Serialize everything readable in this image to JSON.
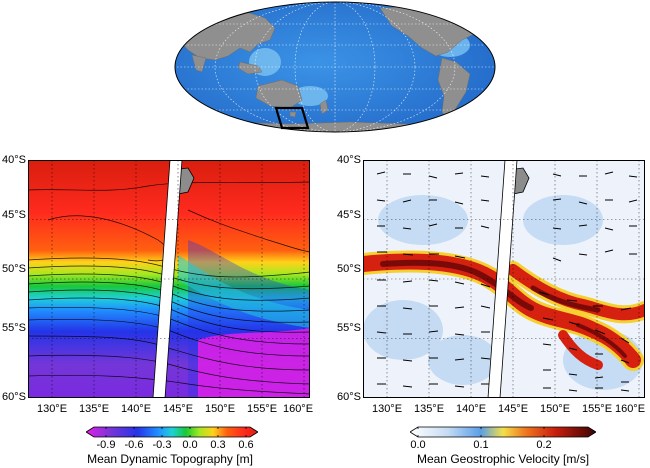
{
  "globe": {
    "ocean_color": "#2f83d8",
    "land_color": "#8c8c8c",
    "study_box": {
      "lon": [
        130,
        162
      ],
      "lat": [
        -60,
        -40
      ]
    }
  },
  "panel_left": {
    "y_ticks": [
      "40°S",
      "45°S",
      "50°S",
      "55°S",
      "60°S"
    ],
    "x_ticks": [
      "130°E",
      "135°E",
      "140°E",
      "145°E",
      "150°E",
      "155°E",
      "160°E"
    ],
    "colorbar": {
      "ticks": [
        "-0.9",
        "-0.6",
        "-0.3",
        "0.0",
        "0.3",
        "0.6"
      ],
      "title": "Mean Dynamic Topography [m]",
      "range": [
        -1.05,
        0.7
      ]
    }
  },
  "panel_right": {
    "y_ticks": [
      "40°S",
      "45°S",
      "50°S",
      "55°S",
      "60°S"
    ],
    "x_ticks": [
      "130°E",
      "135°E",
      "140°E",
      "145°E",
      "150°E",
      "155°E",
      "160°E"
    ],
    "colorbar": {
      "ticks": [
        "0.0",
        "0.1",
        "0.2"
      ],
      "title": "Mean Geostrophic Velocity [m/s]",
      "range": [
        0,
        0.27
      ]
    }
  }
}
